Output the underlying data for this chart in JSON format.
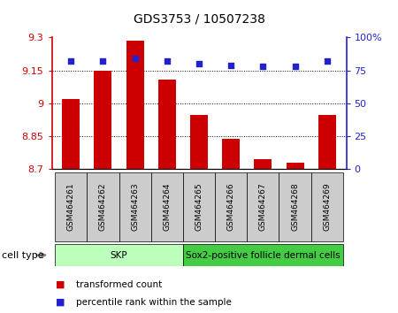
{
  "title": "GDS3753 / 10507238",
  "samples": [
    "GSM464261",
    "GSM464262",
    "GSM464263",
    "GSM464264",
    "GSM464265",
    "GSM464266",
    "GSM464267",
    "GSM464268",
    "GSM464269"
  ],
  "transformed_counts": [
    9.02,
    9.147,
    9.285,
    9.11,
    8.948,
    8.836,
    8.745,
    8.73,
    8.948
  ],
  "percentile_ranks": [
    82,
    82,
    84,
    82,
    80,
    79,
    78,
    78,
    82
  ],
  "ylim_left": [
    8.7,
    9.3
  ],
  "ylim_right": [
    0,
    100
  ],
  "yticks_left": [
    8.7,
    8.85,
    9.0,
    9.15,
    9.3
  ],
  "ytick_labels_left": [
    "8.7",
    "8.85",
    "9",
    "9.15",
    "9.3"
  ],
  "yticks_right": [
    0,
    25,
    50,
    75,
    100
  ],
  "ytick_labels_right": [
    "0",
    "25",
    "50",
    "75",
    "100%"
  ],
  "hlines": [
    8.85,
    9.0,
    9.15
  ],
  "bar_color": "#cc0000",
  "dot_color": "#2222cc",
  "cell_type_groups": [
    {
      "label": "SKP",
      "start": 0,
      "end": 3,
      "color": "#bbffbb"
    },
    {
      "label": "Sox2-positive follicle dermal cells",
      "start": 4,
      "end": 8,
      "color": "#44cc44"
    }
  ],
  "legend_items": [
    {
      "color": "#cc0000",
      "label": "transformed count"
    },
    {
      "color": "#2222cc",
      "label": "percentile rank within the sample"
    }
  ],
  "cell_type_label": "cell type",
  "left_axis_color": "#cc0000",
  "right_axis_color": "#2222cc",
  "bar_width": 0.55,
  "tick_label_box_color": "#cccccc",
  "spine_color": "#000000"
}
